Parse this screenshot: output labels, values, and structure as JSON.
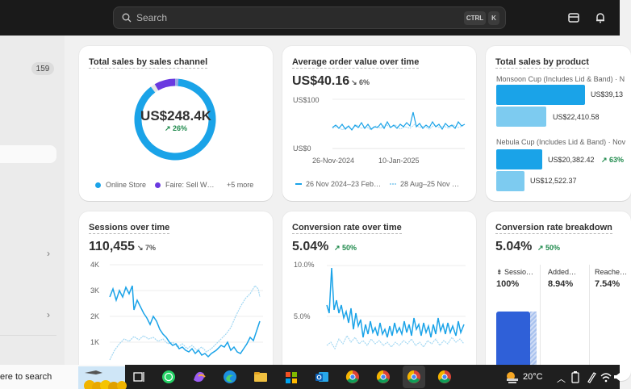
{
  "topbar": {
    "search_placeholder": "Search",
    "shortcut_ctrl": "CTRL",
    "shortcut_k": "K"
  },
  "sidebar": {
    "badge_count": "159"
  },
  "cards": {
    "sales_channel": {
      "title": "Total sales by sales channel",
      "total": "US$248.4K",
      "delta": "↗ 26%",
      "legend": [
        "Online Store",
        "Faire: Sell W…",
        "+5 more"
      ],
      "colors": {
        "online_store": "#1aa3e8",
        "faire": "#6a39e0"
      }
    },
    "aov": {
      "title": "Average order value over time",
      "value": "US$40.16",
      "delta": "↘ 6%",
      "y_top": "US$100",
      "y_bottom": "US$0",
      "x_labels": [
        "26-Nov-2024",
        "10-Jan-2025"
      ],
      "legend_current": "26 Nov 2024–23 Feb…",
      "legend_previous": "28 Aug–25 Nov …"
    },
    "product_sales": {
      "title": "Total sales by product",
      "product1": "Monsoon Cup (Includes Lid & Band) · N",
      "product1_current": "US$39,13",
      "product1_previous": "US$22,410.58",
      "product2": "Nebula Cup (Includes Lid & Band) · Nov",
      "product2_current": "US$20,382.42",
      "product2_delta": "↗ 63%",
      "product2_previous": "US$12,522.37"
    },
    "sessions": {
      "title": "Sessions over time",
      "value": "110,455",
      "delta": "↘ 7%",
      "y_labels": [
        "4K",
        "3K",
        "2K",
        "1K"
      ]
    },
    "conversion": {
      "title": "Conversion rate over time",
      "value": "5.04%",
      "delta": "↗ 50%",
      "y_labels": [
        "10.0%",
        "5.0%"
      ]
    },
    "breakdown": {
      "title": "Conversion rate breakdown",
      "value": "5.04%",
      "delta": "↗ 50%",
      "columns": [
        {
          "label": "Sessio…",
          "value": "100%"
        },
        {
          "label": "Added…",
          "value": "8.94%"
        },
        {
          "label": "Reache…",
          "value": "7.54%"
        }
      ]
    }
  },
  "taskbar": {
    "search_text": "ere to search",
    "temperature": "20°C"
  }
}
